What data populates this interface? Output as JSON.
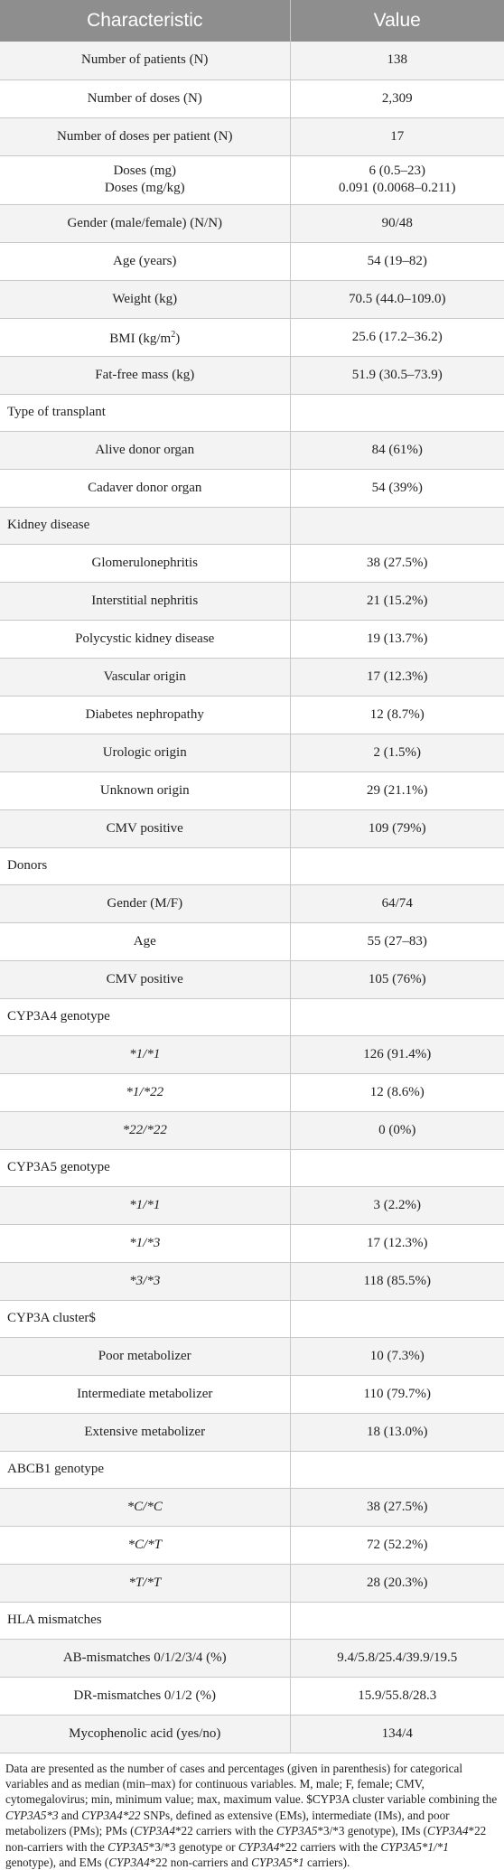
{
  "table": {
    "headers": [
      "Characteristic",
      "Value"
    ],
    "rows": [
      {
        "label": "Number of patients (N)",
        "value": "138",
        "h": 42
      },
      {
        "label": "Number of doses (N)",
        "value": "2,309",
        "h": 42
      },
      {
        "label": "Number of doses per patient (N)",
        "value": "17",
        "h": 42
      },
      {
        "label": "Doses (mg)",
        "label2": "Doses (mg/kg)",
        "value": "6 (0.5–23)",
        "value2": "0.091 (0.0068–0.211)",
        "h": 54
      },
      {
        "label": "Gender (male/female) (N/N)",
        "value": "90/48",
        "h": 42
      },
      {
        "label": "Age (years)",
        "value": "54 (19–82)",
        "h": 42
      },
      {
        "label": "Weight (kg)",
        "value": "70.5 (44.0–109.0)",
        "h": 42
      },
      {
        "label": "BMI (kg/m",
        "label_sup": "2",
        "label_after": ")",
        "value": "25.6 (17.2–36.2)",
        "h": 42
      },
      {
        "label": "Fat-free mass (kg)",
        "value": "51.9 (30.5–73.9)",
        "h": 42
      },
      {
        "label": "Type of transplant",
        "value": "",
        "section": true,
        "h": 41
      },
      {
        "label": "Alive donor organ",
        "value": "84 (61%)",
        "h": 42
      },
      {
        "label": "Cadaver donor organ",
        "value": "54 (39%)",
        "h": 42
      },
      {
        "label": "Kidney disease",
        "value": "",
        "section": true,
        "h": 41
      },
      {
        "label": "Glomerulonephritis",
        "value": "38 (27.5%)",
        "h": 42
      },
      {
        "label": "Interstitial nephritis",
        "value": "21 (15.2%)",
        "h": 42
      },
      {
        "label": "Polycystic kidney disease",
        "value": "19 (13.7%)",
        "h": 42
      },
      {
        "label": "Vascular origin",
        "value": "17 (12.3%)",
        "h": 42
      },
      {
        "label": "Diabetes nephropathy",
        "value": "12 (8.7%)",
        "h": 42
      },
      {
        "label": "Urologic origin",
        "value": "2 (1.5%)",
        "h": 42
      },
      {
        "label": "Unknown origin",
        "value": "29 (21.1%)",
        "h": 42
      },
      {
        "label": "CMV positive",
        "value": "109 (79%)",
        "h": 42
      },
      {
        "label": "Donors",
        "value": "",
        "section": true,
        "h": 41
      },
      {
        "label": "Gender (M/F)",
        "value": "64/74",
        "h": 42
      },
      {
        "label": "Age",
        "value": "55 (27–83)",
        "h": 42
      },
      {
        "label": "CMV positive",
        "value": "105 (76%)",
        "h": 42
      },
      {
        "label": "CYP3A4 genotype",
        "value": "",
        "section": true,
        "h": 41
      },
      {
        "label": "*1/*1",
        "value": "126 (91.4%)",
        "italic": true,
        "h": 42
      },
      {
        "label": "*1/*22",
        "value": "12 (8.6%)",
        "italic": true,
        "h": 42
      },
      {
        "label": "*22/*22",
        "value": "0 (0%)",
        "italic": true,
        "h": 42
      },
      {
        "label": "CYP3A5 genotype",
        "value": "",
        "section": true,
        "h": 41
      },
      {
        "label": "*1/*1",
        "value": "3 (2.2%)",
        "italic": true,
        "h": 42
      },
      {
        "label": "*1/*3",
        "value": "17 (12.3%)",
        "italic": true,
        "h": 42
      },
      {
        "label": "*3/*3",
        "value": "118 (85.5%)",
        "italic": true,
        "h": 42
      },
      {
        "label": "CYP3A cluster$",
        "value": "",
        "section": true,
        "h": 41
      },
      {
        "label": "Poor metabolizer",
        "value": "10 (7.3%)",
        "h": 42
      },
      {
        "label": "Intermediate metabolizer",
        "value": "110 (79.7%)",
        "h": 42
      },
      {
        "label": "Extensive metabolizer",
        "value": "18 (13.0%)",
        "h": 42
      },
      {
        "label": "ABCB1 genotype",
        "value": "",
        "section": true,
        "h": 41
      },
      {
        "label": "*C/*C",
        "value": "38 (27.5%)",
        "italic": true,
        "h": 42
      },
      {
        "label": "*C/*T",
        "value": "72 (52.2%)",
        "italic": true,
        "h": 42
      },
      {
        "label": "*T/*T",
        "value": "28 (20.3%)",
        "italic": true,
        "h": 42
      },
      {
        "label": "HLA mismatches",
        "value": "",
        "section": true,
        "h": 41
      },
      {
        "label": "AB-mismatches 0/1/2/3/4 (%)",
        "value": "9.4/5.8/25.4/39.9/19.5",
        "h": 42
      },
      {
        "label": "DR-mismatches 0/1/2 (%)",
        "value": "15.9/55.8/28.3",
        "h": 42
      },
      {
        "label": "Mycophenolic acid (yes/no)",
        "value": "134/4",
        "h": 42
      }
    ]
  },
  "footnote": {
    "p1": "Data are presented as the number of cases and percentages (given in parenthesis) for categorical variables and as median (min–max) for continuous variables. M, male; F, female; CMV, cytomegalovirus; min, minimum value; max, maximum value. $CYP3A cluster variable combining the ",
    "g1": "CYP3A5*3",
    "p2": " and ",
    "g2": "CYP3A4*22",
    "p3": " SNPs, defined as extensive (EMs), intermediate (IMs), and poor metabolizers (PMs); PMs (",
    "g3": "CYP3A4",
    "p4": "*22 carriers with the ",
    "g4": "CYP3A5",
    "p5": "*3/*3 genotype), IMs (",
    "g5": "CYP3A4",
    "p6": "*22 non-carriers with the ",
    "g6": "CYP3A5",
    "p7": "*3/*3 genotype or ",
    "g7": "CYP3A4",
    "p8": "*22 carriers with the ",
    "g8": "CYP3A5*1/*1",
    "p9": " genotype), and EMs (",
    "g9": "CYP3A4",
    "p10": "*22 non-carriers and ",
    "g10": "CYP3A5*1",
    "p11": " carriers)."
  }
}
